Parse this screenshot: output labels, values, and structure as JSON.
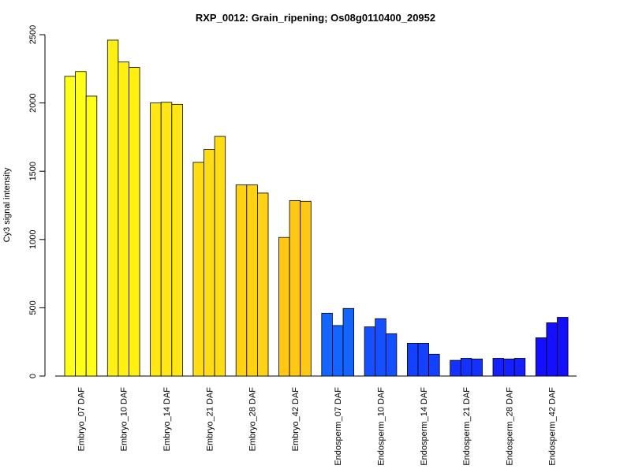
{
  "chart_data": {
    "type": "bar",
    "title": "RXP_0012: Grain_ripening; Os08g0110400_20952",
    "xlabel": "",
    "ylabel": "Cy3 signal intensity",
    "ylim": [
      0,
      2500
    ],
    "yticks": [
      0,
      500,
      1000,
      1500,
      2000,
      2500
    ],
    "grid": false,
    "categories": [
      "Embryo_07 DAF",
      "Embryo_10 DAF",
      "Embryo_14 DAF",
      "Embryo_21 DAF",
      "Embryo_28 DAF",
      "Embryo_42 DAF",
      "Endosperm_07 DAF",
      "Endosperm_10 DAF",
      "Endosperm_14 DAF",
      "Endosperm_21 DAF",
      "Endosperm_28 DAF",
      "Endosperm_42 DAF"
    ],
    "replicates_per_category": 3,
    "values": [
      [
        2195,
        2230,
        2050
      ],
      [
        2460,
        2300,
        2260
      ],
      [
        2000,
        2005,
        1990
      ],
      [
        1565,
        1660,
        1755
      ],
      [
        1400,
        1400,
        1340
      ],
      [
        1015,
        1285,
        1280
      ],
      [
        460,
        370,
        495
      ],
      [
        360,
        420,
        310
      ],
      [
        240,
        240,
        160
      ],
      [
        115,
        130,
        125
      ],
      [
        130,
        125,
        130
      ],
      [
        280,
        390,
        430
      ]
    ],
    "colors": [
      "#FFFF19",
      "#FFF014",
      "#FFE614",
      "#FFDC14",
      "#FFD214",
      "#FFC814",
      "#1464FF",
      "#1450FF",
      "#1440FF",
      "#1432FF",
      "#1420FF",
      "#1410FF"
    ]
  }
}
